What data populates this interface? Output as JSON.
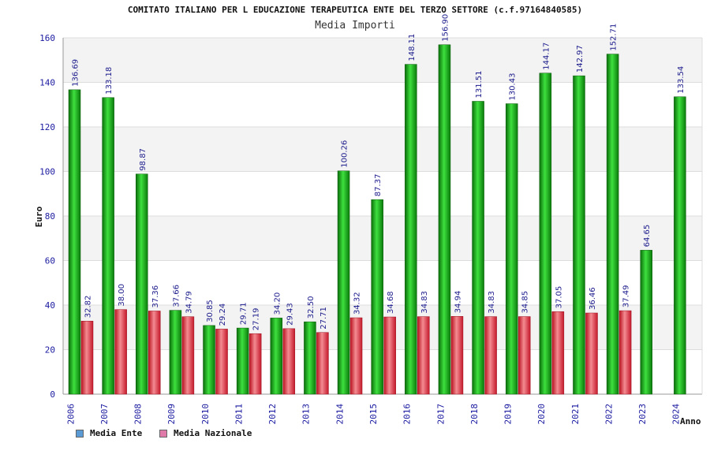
{
  "chart_data": {
    "type": "bar",
    "title": "COMITATO ITALIANO PER L EDUCAZIONE TERAPEUTICA ENTE DEL TERZO SETTORE (c.f.97164840585)",
    "subtitle": "Media Importi",
    "ylabel": "Euro",
    "xlabel": "Anno",
    "ylim": [
      0,
      160
    ],
    "yticks": [
      0,
      20,
      40,
      60,
      80,
      100,
      120,
      140,
      160
    ],
    "grid": true,
    "legend_position": "bottom-left",
    "categories": [
      "2006",
      "2007",
      "2008",
      "2009",
      "2010",
      "2011",
      "2012",
      "2013",
      "2014",
      "2015",
      "2016",
      "2017",
      "2018",
      "2019",
      "2020",
      "2021",
      "2022",
      "2023",
      "2024"
    ],
    "series": [
      {
        "name": "Media Ente",
        "color": "#22bb22",
        "legend_color": "#5b9bd5",
        "values": [
          136.69,
          133.18,
          98.87,
          37.66,
          30.85,
          29.71,
          34.2,
          32.5,
          100.26,
          87.37,
          148.11,
          156.9,
          131.51,
          130.43,
          144.17,
          142.97,
          152.71,
          64.65,
          133.54
        ],
        "labels": [
          "136.69",
          "133.18",
          "98.87",
          "37.66",
          "30.85",
          "29.71",
          "34.20",
          "32.50",
          "100.26",
          "87.37",
          "148.11",
          "156.90",
          "131.51",
          "130.43",
          "144.17",
          "142.97",
          "152.71",
          "64.65",
          "133.54"
        ]
      },
      {
        "name": "Media Nazionale",
        "color": "#e8464e",
        "legend_color": "#e07aa8",
        "values": [
          32.82,
          38.0,
          37.36,
          34.79,
          29.24,
          27.19,
          29.43,
          27.71,
          34.32,
          34.68,
          34.83,
          34.94,
          34.83,
          34.85,
          37.05,
          36.46,
          37.49,
          null,
          null
        ],
        "labels": [
          "32.82",
          "38.00",
          "37.36",
          "34.79",
          "29.24",
          "27.19",
          "29.43",
          "27.71",
          "34.32",
          "34.68",
          "34.83",
          "34.94",
          "34.83",
          "34.85",
          "37.05",
          "36.46",
          "37.49",
          "",
          ""
        ]
      }
    ]
  }
}
